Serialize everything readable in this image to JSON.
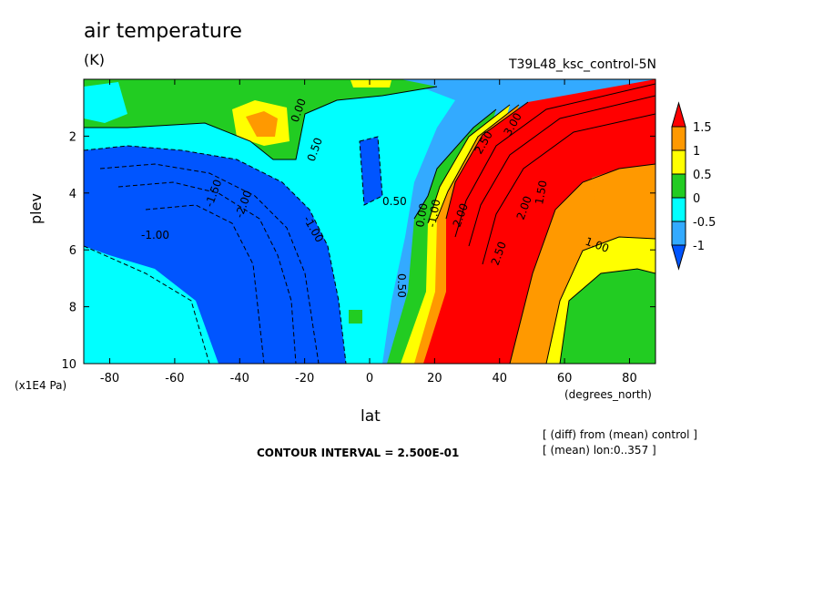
{
  "chart_data": {
    "type": "heatmap",
    "title": "air temperature",
    "units": "(K)",
    "subtitle": "T39L48_ksc_control-5N",
    "xlabel": "lat",
    "x_units": "(degrees_north)",
    "ylabel": "plev",
    "y_units": "(x1E4 Pa)",
    "xlim": [
      -88,
      88
    ],
    "ylim": [
      10,
      0
    ],
    "x_ticks": [
      -80,
      -60,
      -40,
      -20,
      0,
      20,
      40,
      60,
      80
    ],
    "x_tick_labels": [
      "-80",
      "-60",
      "-40",
      "-20",
      "0",
      "20",
      "40",
      "60",
      "80"
    ],
    "y_ticks": [
      2,
      4,
      6,
      8,
      10
    ],
    "y_tick_labels": [
      "2",
      "4",
      "6",
      "8",
      "10"
    ],
    "colorbar": {
      "labels": [
        "1.5",
        "1",
        "0.5",
        "0",
        "-0.5",
        "-1"
      ],
      "colors": [
        "#ff0000",
        "#ff9900",
        "#ffff00",
        "#22cc22",
        "#00ffff",
        "#33aaff",
        "#0055ff"
      ]
    },
    "contour_labels": [
      "0.00",
      "0.50",
      "-1.50",
      "-2.00",
      "-1.00",
      "-1.00",
      "0.00",
      "0.50",
      "-1.00",
      "2.50",
      "3.00",
      "2.50",
      "2.00",
      "2.00",
      "1.50",
      "1.00",
      "0.50"
    ],
    "contour_interval_text": "CONTOUR INTERVAL = 2.500E-01",
    "notes": [
      "[ (diff) from (mean) control ]",
      "[ (mean) lon:0..357 ]"
    ]
  }
}
